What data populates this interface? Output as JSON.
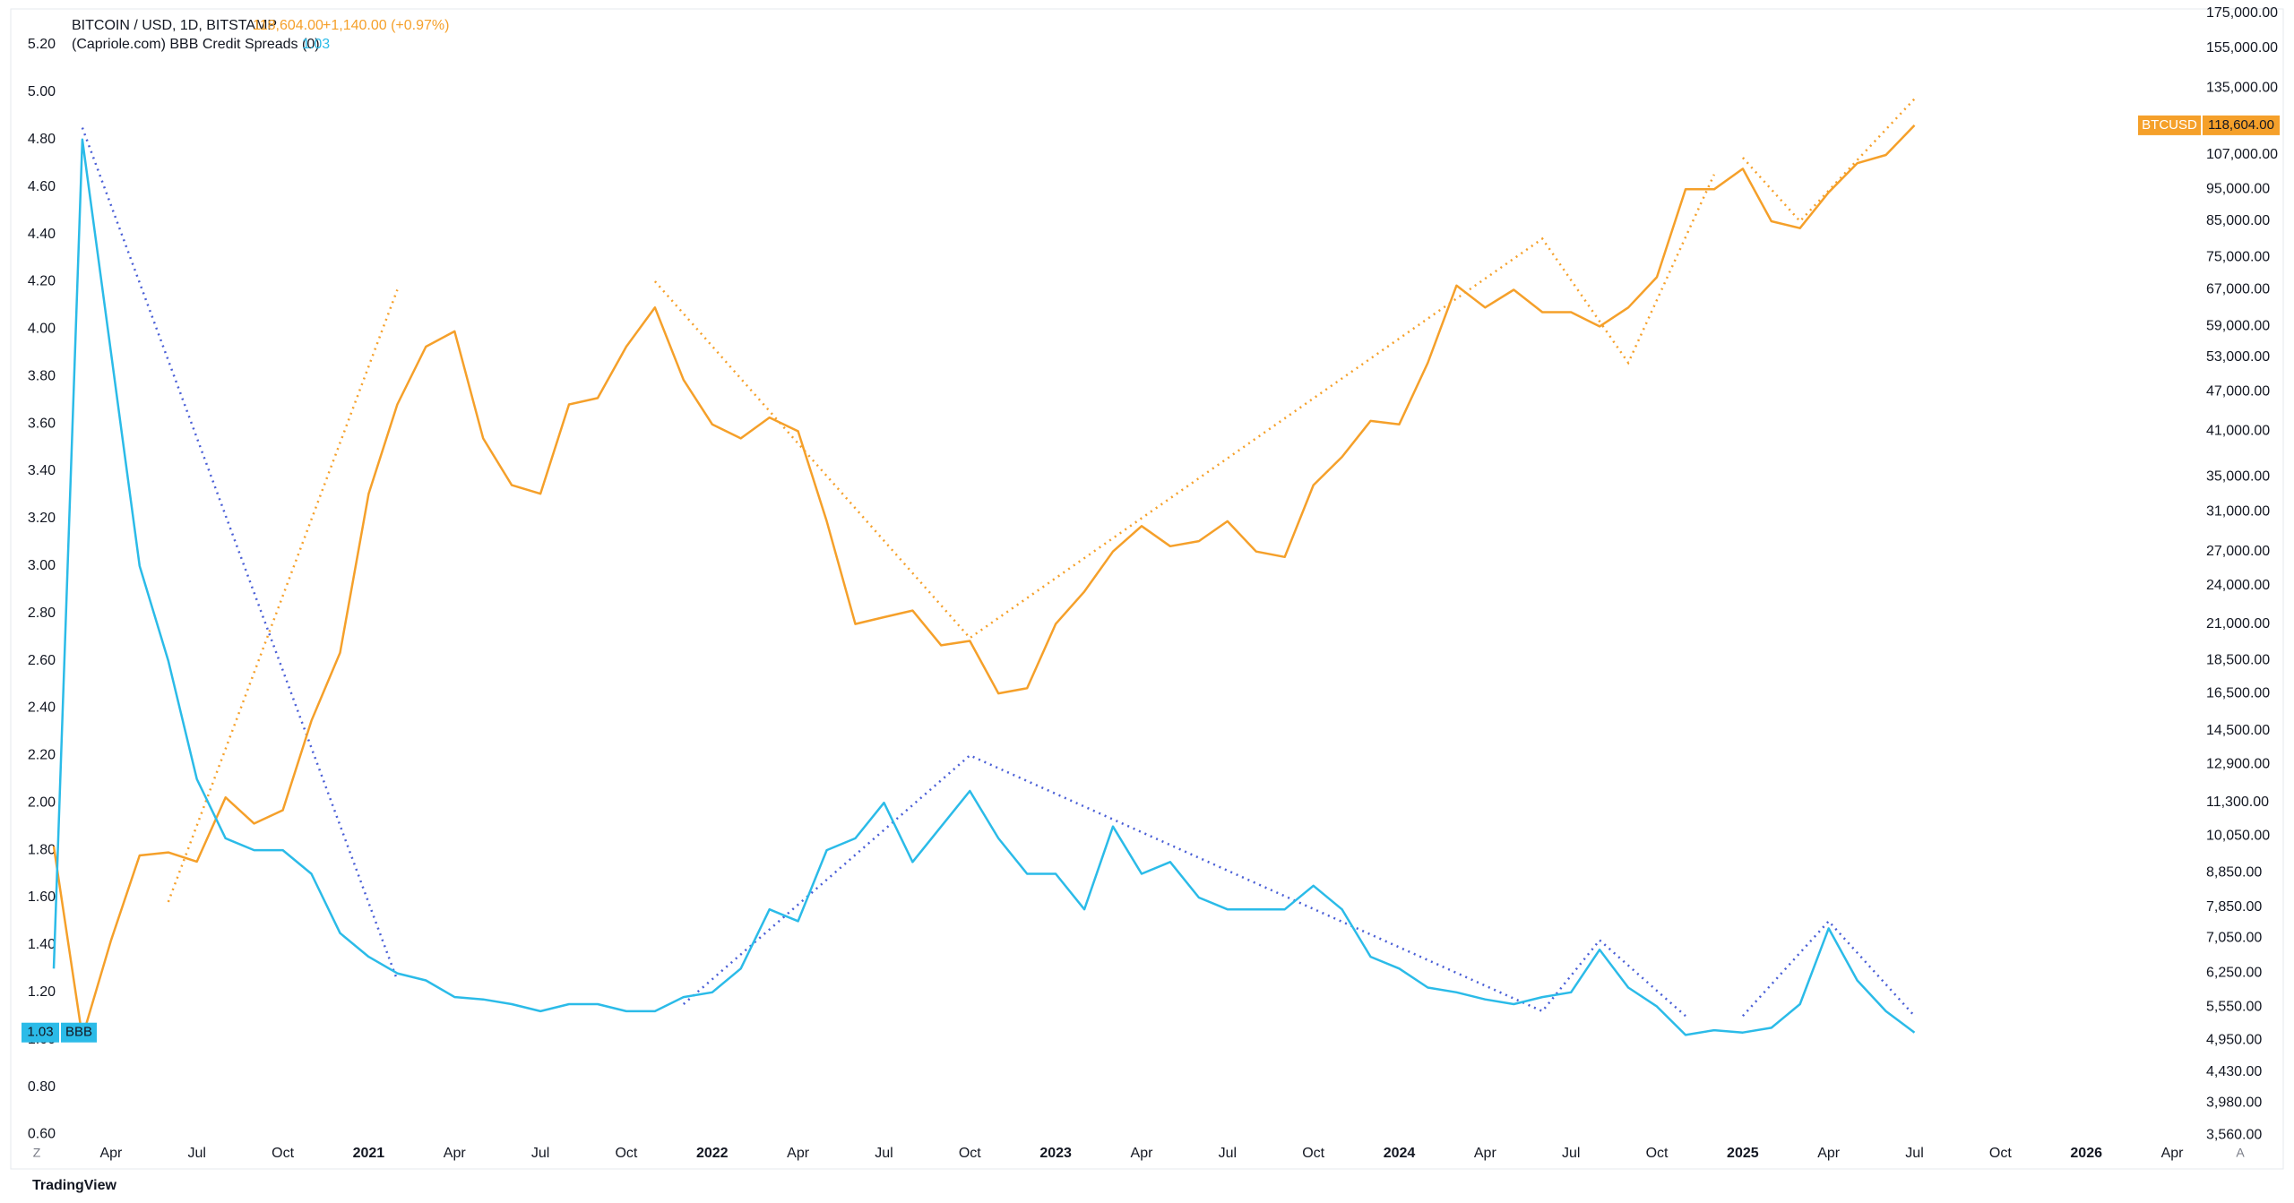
{
  "chart_data": {
    "type": "line",
    "title": "BITCOIN / USD, 1D, BITSTAMP",
    "price": "118,604.00",
    "change": "+1,140.00 (+0.97%)",
    "indicator": "(Capriole.com) BBB Credit Spreads (0)",
    "indicator_value": "1.03",
    "x": [
      "2020-02",
      "2020-03",
      "2020-04",
      "2020-05",
      "2020-06",
      "2020-07",
      "2020-08",
      "2020-09",
      "2020-10",
      "2020-11",
      "2020-12",
      "2021-01",
      "2021-02",
      "2021-03",
      "2021-04",
      "2021-05",
      "2021-06",
      "2021-07",
      "2021-08",
      "2021-09",
      "2021-10",
      "2021-11",
      "2021-12",
      "2022-01",
      "2022-02",
      "2022-03",
      "2022-04",
      "2022-05",
      "2022-06",
      "2022-07",
      "2022-08",
      "2022-09",
      "2022-10",
      "2022-11",
      "2022-12",
      "2023-01",
      "2023-02",
      "2023-03",
      "2023-04",
      "2023-05",
      "2023-06",
      "2023-07",
      "2023-08",
      "2023-09",
      "2023-10",
      "2023-11",
      "2023-12",
      "2024-01",
      "2024-02",
      "2024-03",
      "2024-04",
      "2024-05",
      "2024-06",
      "2024-07",
      "2024-08",
      "2024-09",
      "2024-10",
      "2024-11",
      "2024-12",
      "2025-01",
      "2025-02",
      "2025-03",
      "2025-04",
      "2025-05",
      "2025-06",
      "2025-07"
    ],
    "series": [
      {
        "name": "BTCUSD",
        "color": "#f5a02a",
        "axis": "y2",
        "last_label": "118,604.00",
        "values": [
          9700,
          5000,
          7000,
          9400,
          9500,
          9200,
          11500,
          10500,
          11000,
          15000,
          19000,
          33000,
          45000,
          55000,
          58000,
          40000,
          34000,
          33000,
          45000,
          46000,
          55000,
          63000,
          49000,
          42000,
          40000,
          43000,
          41000,
          30000,
          21000,
          21500,
          22000,
          19500,
          19800,
          16500,
          16800,
          21000,
          23500,
          27000,
          29500,
          27500,
          28000,
          30000,
          27000,
          26500,
          34000,
          37500,
          42500,
          42000,
          52000,
          68000,
          63000,
          67000,
          62000,
          62000,
          59000,
          63000,
          70000,
          95000,
          95000,
          102000,
          85000,
          83000,
          94000,
          104000,
          107000,
          118604
        ]
      },
      {
        "name": "BBB",
        "color": "#2bbbe8",
        "axis": "y",
        "last_label": "1.03",
        "values": [
          1.3,
          4.8,
          3.9,
          3.0,
          2.6,
          2.1,
          1.85,
          1.8,
          1.8,
          1.7,
          1.45,
          1.35,
          1.28,
          1.25,
          1.18,
          1.17,
          1.15,
          1.12,
          1.15,
          1.15,
          1.12,
          1.12,
          1.18,
          1.2,
          1.3,
          1.55,
          1.5,
          1.8,
          1.85,
          2.0,
          1.75,
          1.9,
          2.05,
          1.85,
          1.7,
          1.7,
          1.55,
          1.9,
          1.7,
          1.75,
          1.6,
          1.55,
          1.55,
          1.55,
          1.65,
          1.55,
          1.35,
          1.3,
          1.22,
          1.2,
          1.17,
          1.15,
          1.18,
          1.2,
          1.38,
          1.22,
          1.14,
          1.02,
          1.04,
          1.03,
          1.05,
          1.15,
          1.47,
          1.25,
          1.12,
          1.03
        ]
      }
    ],
    "drawings": [
      {
        "axis": "y",
        "color": "#4a5fd6",
        "x": [
          "2020-03",
          "2021-02"
        ],
        "y": [
          4.85,
          1.25
        ]
      },
      {
        "axis": "y",
        "color": "#4a5fd6",
        "x": [
          "2021-12",
          "2022-10",
          "2024-06",
          "2024-08",
          "2024-11"
        ],
        "y": [
          1.15,
          2.2,
          1.12,
          1.42,
          1.1
        ]
      },
      {
        "axis": "y",
        "color": "#4a5fd6",
        "x": [
          "2025-01",
          "2025-04",
          "2025-07"
        ],
        "y": [
          1.1,
          1.5,
          1.1
        ]
      },
      {
        "axis": "y2",
        "color": "#f5a02a",
        "x": [
          "2020-06",
          "2021-02"
        ],
        "y": [
          8000,
          67000
        ]
      },
      {
        "axis": "y2",
        "color": "#f5a02a",
        "x": [
          "2021-11",
          "2022-10",
          "2024-06",
          "2024-09",
          "2024-12"
        ],
        "y": [
          69000,
          20000,
          80000,
          52000,
          100000
        ]
      },
      {
        "axis": "y2",
        "color": "#f5a02a",
        "x": [
          "2025-01",
          "2025-03",
          "2025-07"
        ],
        "y": [
          106000,
          85000,
          130000
        ]
      }
    ],
    "xlim": [
      "2020-02",
      "2026-05"
    ],
    "xticks": [
      {
        "value": "2020-04",
        "label": "Apr"
      },
      {
        "value": "2020-07",
        "label": "Jul"
      },
      {
        "value": "2020-10",
        "label": "Oct"
      },
      {
        "value": "2021-01",
        "label": "2021"
      },
      {
        "value": "2021-04",
        "label": "Apr"
      },
      {
        "value": "2021-07",
        "label": "Jul"
      },
      {
        "value": "2021-10",
        "label": "Oct"
      },
      {
        "value": "2022-01",
        "label": "2022"
      },
      {
        "value": "2022-04",
        "label": "Apr"
      },
      {
        "value": "2022-07",
        "label": "Jul"
      },
      {
        "value": "2022-10",
        "label": "Oct"
      },
      {
        "value": "2023-01",
        "label": "2023"
      },
      {
        "value": "2023-04",
        "label": "Apr"
      },
      {
        "value": "2023-07",
        "label": "Jul"
      },
      {
        "value": "2023-10",
        "label": "Oct"
      },
      {
        "value": "2024-01",
        "label": "2024"
      },
      {
        "value": "2024-04",
        "label": "Apr"
      },
      {
        "value": "2024-07",
        "label": "Jul"
      },
      {
        "value": "2024-10",
        "label": "Oct"
      },
      {
        "value": "2025-01",
        "label": "2025"
      },
      {
        "value": "2025-04",
        "label": "Apr"
      },
      {
        "value": "2025-07",
        "label": "Jul"
      },
      {
        "value": "2025-10",
        "label": "Oct"
      },
      {
        "value": "2026-01",
        "label": "2026"
      },
      {
        "value": "2026-04",
        "label": "Apr"
      }
    ],
    "ylim": [
      0.56,
      5.34
    ],
    "yticks": [
      {
        "value": 5.2,
        "label": "5.20"
      },
      {
        "value": 5.0,
        "label": "5.00"
      },
      {
        "value": 4.8,
        "label": "4.80"
      },
      {
        "value": 4.6,
        "label": "4.60"
      },
      {
        "value": 4.4,
        "label": "4.40"
      },
      {
        "value": 4.2,
        "label": "4.20"
      },
      {
        "value": 4.0,
        "label": "4.00"
      },
      {
        "value": 3.8,
        "label": "3.80"
      },
      {
        "value": 3.6,
        "label": "3.60"
      },
      {
        "value": 3.4,
        "label": "3.40"
      },
      {
        "value": 3.2,
        "label": "3.20"
      },
      {
        "value": 3.0,
        "label": "3.00"
      },
      {
        "value": 2.8,
        "label": "2.80"
      },
      {
        "value": 2.6,
        "label": "2.60"
      },
      {
        "value": 2.4,
        "label": "2.40"
      },
      {
        "value": 2.2,
        "label": "2.20"
      },
      {
        "value": 2.0,
        "label": "2.00"
      },
      {
        "value": 1.8,
        "label": "1.80"
      },
      {
        "value": 1.6,
        "label": "1.60"
      },
      {
        "value": 1.4,
        "label": "1.40"
      },
      {
        "value": 1.2,
        "label": "1.20"
      },
      {
        "value": 1.0,
        "label": "1.00"
      },
      {
        "value": 0.8,
        "label": "0.80"
      },
      {
        "value": 0.6,
        "label": "0.60"
      }
    ],
    "y2lim": [
      3453,
      176000
    ],
    "y2log": true,
    "y2ticks": [
      {
        "value": 175000,
        "label": "175,000.00"
      },
      {
        "value": 155000,
        "label": "155,000.00"
      },
      {
        "value": 135000,
        "label": "135,000.00"
      },
      {
        "value": 107000,
        "label": "107,000.00"
      },
      {
        "value": 95000,
        "label": "95,000.00"
      },
      {
        "value": 85000,
        "label": "85,000.00"
      },
      {
        "value": 75000,
        "label": "75,000.00"
      },
      {
        "value": 67000,
        "label": "67,000.00"
      },
      {
        "value": 59000,
        "label": "59,000.00"
      },
      {
        "value": 53000,
        "label": "53,000.00"
      },
      {
        "value": 47000,
        "label": "47,000.00"
      },
      {
        "value": 41000,
        "label": "41,000.00"
      },
      {
        "value": 35000,
        "label": "35,000.00"
      },
      {
        "value": 31000,
        "label": "31,000.00"
      },
      {
        "value": 27000,
        "label": "27,000.00"
      },
      {
        "value": 24000,
        "label": "24,000.00"
      },
      {
        "value": 21000,
        "label": "21,000.00"
      },
      {
        "value": 18500,
        "label": "18,500.00"
      },
      {
        "value": 16500,
        "label": "16,500.00"
      },
      {
        "value": 14500,
        "label": "14,500.00"
      },
      {
        "value": 12900,
        "label": "12,900.00"
      },
      {
        "value": 11300,
        "label": "11,300.00"
      },
      {
        "value": 10050,
        "label": "10,050.00"
      },
      {
        "value": 8850,
        "label": "8,850.00"
      },
      {
        "value": 7850,
        "label": "7,850.00"
      },
      {
        "value": 7050,
        "label": "7,050.00"
      },
      {
        "value": 6250,
        "label": "6,250.00"
      },
      {
        "value": 5550,
        "label": "5,550.00"
      },
      {
        "value": 4950,
        "label": "4,950.00"
      },
      {
        "value": 4430,
        "label": "4,430.00"
      },
      {
        "value": 3980,
        "label": "3,980.00"
      },
      {
        "value": 3560,
        "label": "3,560.00"
      }
    ],
    "grid": false
  },
  "ui": {
    "left_button": "Z",
    "right_button": "A",
    "logo": "TradingView"
  }
}
